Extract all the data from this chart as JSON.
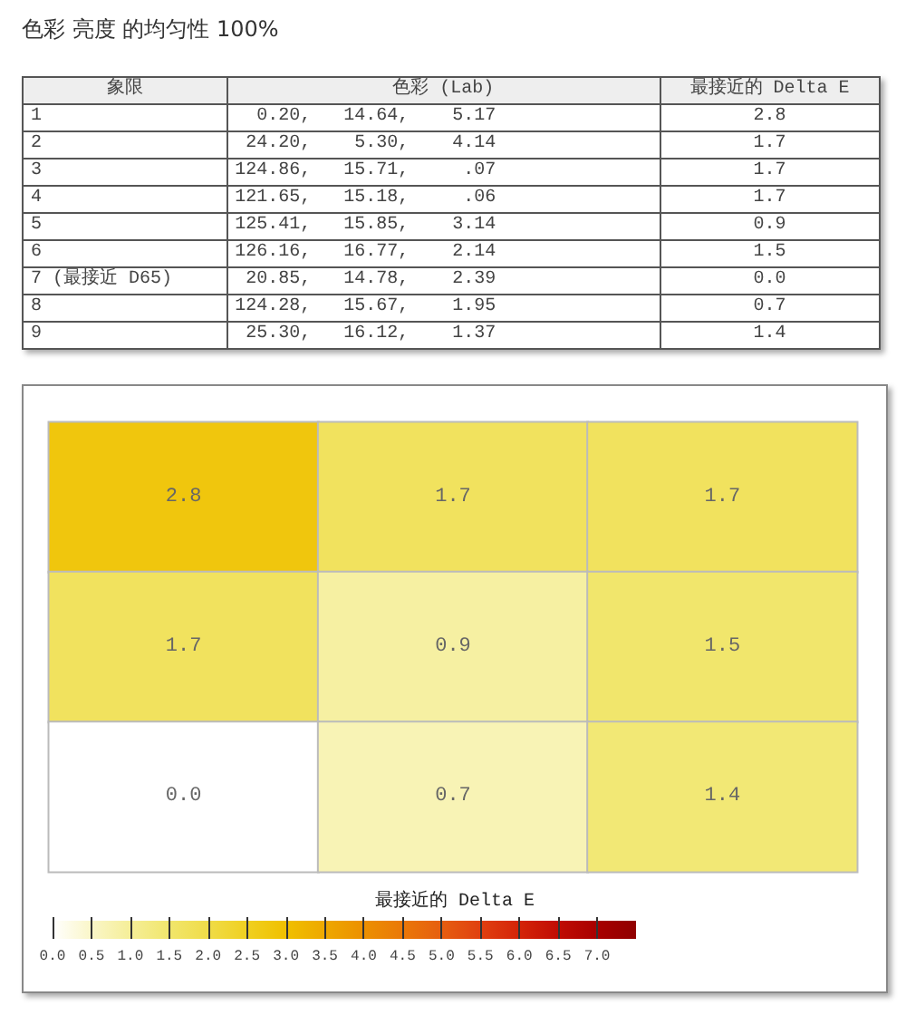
{
  "chart_data": [
    {
      "type": "other",
      "title": "色彩 亮度 的均匀性 100%",
      "categories": [
        "象限",
        "色彩 (Lab)",
        "最接近的 Delta E"
      ],
      "cell_labels": [
        [
          "1",
          "0.20,   14.64,    5.17",
          "2.8"
        ],
        [
          "2",
          "24.20,    5.30,    4.14",
          "1.7"
        ],
        [
          "3",
          "124.86,   15.71,     .07",
          "1.7"
        ],
        [
          "4",
          "121.65,   15.18,     .06",
          "1.7"
        ],
        [
          "5",
          "125.41,   15.85,    3.14",
          "0.9"
        ],
        [
          "6",
          "126.16,   16.77,    2.14",
          "1.5"
        ],
        [
          "7 (最接近 D65)",
          "20.85,   14.78,    2.39",
          "0.0"
        ],
        [
          "8",
          "124.28,   15.67,    1.95",
          "0.7"
        ],
        [
          "9",
          "25.30,   16.12,    1.37",
          "1.4"
        ]
      ]
    },
    {
      "type": "heatmap",
      "categories": [
        null,
        null,
        null
      ],
      "y_categories": [
        null,
        null,
        null
      ],
      "cells": [
        [
          2.8,
          1.7,
          1.7
        ],
        [
          1.7,
          0.9,
          1.5
        ],
        [
          0.0,
          0.7,
          1.4
        ]
      ],
      "cell_labels": [
        [
          "2.8",
          "1.7",
          "1.7"
        ],
        [
          "1.7",
          "0.9",
          "1.5"
        ],
        [
          "0.0",
          "0.7",
          "1.4"
        ]
      ],
      "clabel": "最接近的 Delta E",
      "clim": [
        0,
        7.5
      ],
      "cticks": [
        {
          "value": 0,
          "label": "0.0"
        },
        {
          "value": 0.5,
          "label": "0.5"
        },
        {
          "value": 1,
          "label": "1.0"
        },
        {
          "value": 1.5,
          "label": "1.5"
        },
        {
          "value": 2,
          "label": "2.0"
        },
        {
          "value": 2.5,
          "label": "2.5"
        },
        {
          "value": 3,
          "label": "3.0"
        },
        {
          "value": 3.5,
          "label": "3.5"
        },
        {
          "value": 4,
          "label": "4.0"
        },
        {
          "value": 4.5,
          "label": "4.5"
        },
        {
          "value": 5,
          "label": "5.0"
        },
        {
          "value": 5.5,
          "label": "5.5"
        },
        {
          "value": 6,
          "label": "6.0"
        },
        {
          "value": 6.5,
          "label": "6.5"
        },
        {
          "value": 7,
          "label": "7.0"
        }
      ]
    }
  ]
}
